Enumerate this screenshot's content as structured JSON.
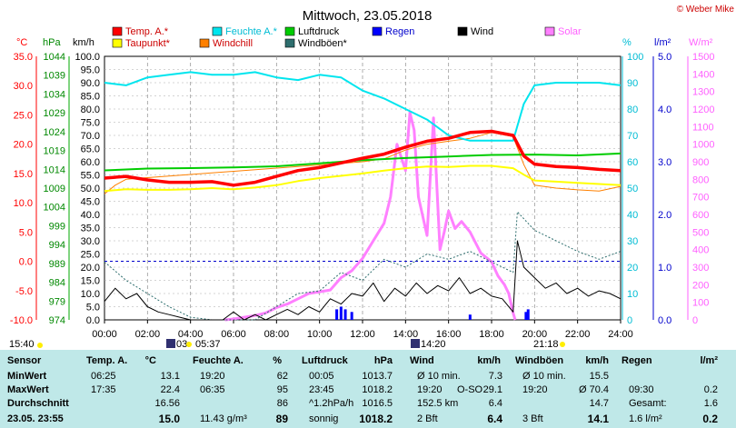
{
  "header": {
    "title": "Mittwoch, 23.05.2018",
    "copyright": "© Weber Mike"
  },
  "legend": [
    {
      "label": "Temp. A.*",
      "color": "#ff0000"
    },
    {
      "label": "Feuchte A.*",
      "color": "#00e5ee"
    },
    {
      "label": "Luftdruck",
      "color": "#00cc00"
    },
    {
      "label": "Regen",
      "color": "#0000ff"
    },
    {
      "label": "Wind",
      "color": "#000000"
    },
    {
      "label": "Solar",
      "color": "#ff80ff"
    },
    {
      "label": "Taupunkt*",
      "color": "#ffff00"
    },
    {
      "label": "Windchill",
      "color": "#ff8000"
    },
    {
      "label": "Windböen*",
      "color": "#2e6e6e"
    }
  ],
  "axes": {
    "temp_unit": "°C",
    "pressure_unit": "hPa",
    "wind_unit": "km/h",
    "humidity_unit": "%",
    "rain_unit": "l/m²",
    "solar_unit": "W/m²",
    "temp_ticks": [
      "35.0",
      "30.0",
      "25.0",
      "20.0",
      "15.0",
      "10.0",
      "5.0",
      "0.0",
      "-5.0",
      "-10.0"
    ],
    "pressure_ticks": [
      "1044",
      "1039",
      "1034",
      "1029",
      "1024",
      "1019",
      "1014",
      "1009",
      "1004",
      "999",
      "994",
      "989",
      "984",
      "979",
      "974"
    ],
    "wind_ticks": [
      "100.0",
      "95.0",
      "90.0",
      "85.0",
      "80.0",
      "75.0",
      "70.0",
      "65.0",
      "60.0",
      "55.0",
      "50.0",
      "45.0",
      "40.0",
      "35.0",
      "30.0",
      "25.0",
      "20.0",
      "15.0",
      "10.0",
      "5.0",
      "0.0"
    ],
    "humidity_ticks": [
      "100",
      "90",
      "80",
      "70",
      "60",
      "50",
      "40",
      "30",
      "20",
      "10",
      "0"
    ],
    "rain_ticks": [
      "5.0",
      "4.0",
      "3.0",
      "2.0",
      "1.0",
      "0.0"
    ],
    "solar_ticks": [
      "1500",
      "1400",
      "1300",
      "1200",
      "1100",
      "1000",
      "900",
      "800",
      "700",
      "600",
      "500",
      "400",
      "300",
      "200",
      "100",
      "0"
    ],
    "time_ticks": [
      "00:00",
      "02:00",
      "04:00",
      "06:00",
      "08:00",
      "10:00",
      "12:00",
      "14:00",
      "16:00",
      "18:00",
      "20:00",
      "22:00",
      "24:00"
    ]
  },
  "events": {
    "sunshine_hours": "15:40",
    "sunrise": "05:37",
    "noon": "14:20",
    "sunset": "21:18",
    "moon_marker": "03:"
  },
  "chart_data": {
    "type": "line",
    "x_unit": "hour",
    "xlim": [
      0,
      24
    ],
    "temp_ylim": [
      -10,
      35
    ],
    "series": [
      {
        "name": "Temp. A.*",
        "axis": "°C",
        "color": "#ff0000",
        "x": [
          0,
          1,
          2,
          3,
          4,
          5,
          6,
          7,
          8,
          9,
          10,
          11,
          12,
          13,
          14,
          15,
          16,
          17,
          18,
          19,
          19.5,
          20,
          21,
          22,
          23,
          24
        ],
        "y": [
          14.2,
          14.5,
          13.9,
          13.5,
          13.5,
          13.6,
          13.0,
          13.5,
          14.5,
          15.5,
          16.0,
          16.8,
          17.6,
          18.3,
          19.5,
          20.5,
          21.0,
          22.0,
          22.2,
          21.5,
          18.0,
          16.6,
          16.2,
          16.0,
          15.7,
          15.5
        ]
      },
      {
        "name": "Taupunkt*",
        "axis": "°C",
        "color": "#ffff00",
        "x": [
          0,
          1,
          2,
          3,
          4,
          5,
          6,
          7,
          8,
          9,
          10,
          11,
          12,
          13,
          14,
          15,
          16,
          17,
          18,
          19,
          19.5,
          20,
          21,
          22,
          23,
          24
        ],
        "y": [
          12.0,
          12.3,
          12.2,
          12.2,
          12.3,
          12.5,
          12.3,
          12.6,
          13.0,
          13.7,
          14.2,
          14.6,
          15.0,
          15.5,
          15.9,
          16.2,
          16.1,
          16.3,
          16.3,
          15.9,
          14.8,
          13.8,
          13.6,
          13.4,
          13.2,
          13.0
        ]
      },
      {
        "name": "Windchill",
        "axis": "°C",
        "color": "#ff8000",
        "x": [
          0,
          0.5,
          1,
          12,
          13,
          14,
          15,
          16,
          17,
          18,
          19,
          19.5,
          20,
          21,
          22,
          23,
          24
        ],
        "y": [
          11.5,
          13.0,
          14.0,
          17.0,
          17.5,
          19.0,
          20.0,
          20.5,
          21.0,
          22.0,
          21.3,
          16.5,
          13.0,
          12.5,
          12.2,
          12.0,
          12.8
        ]
      },
      {
        "name": "Feuchte A.*",
        "axis": "%",
        "color": "#00e5ee",
        "x": [
          0,
          1,
          2,
          3,
          4,
          5,
          6,
          7,
          8,
          9,
          10,
          11,
          12,
          13,
          14,
          15,
          16,
          17,
          18,
          19,
          19.5,
          20,
          21,
          22,
          23,
          24
        ],
        "y": [
          90,
          89,
          92,
          93,
          94,
          93,
          93,
          94,
          92,
          91,
          93,
          92,
          87,
          84,
          80,
          76,
          70,
          68,
          68,
          68,
          82,
          89,
          90,
          90,
          90,
          89
        ]
      },
      {
        "name": "Luftdruck",
        "axis": "hPa",
        "color": "#00cc00",
        "x": [
          0,
          2,
          4,
          6,
          8,
          10,
          12,
          14,
          16,
          18,
          20,
          22,
          24
        ],
        "y": [
          1013.7,
          1014.2,
          1014.3,
          1014.5,
          1014.8,
          1015.6,
          1016.4,
          1017.0,
          1017.4,
          1017.8,
          1017.9,
          1017.7,
          1018.2
        ]
      },
      {
        "name": "Wind",
        "axis": "km/h",
        "color": "#000000",
        "x": [
          0,
          0.5,
          1,
          1.5,
          2,
          2.5,
          3,
          3.5,
          4,
          4.5,
          5,
          5.5,
          6,
          6.5,
          7,
          7.5,
          8,
          8.5,
          9,
          9.5,
          10,
          10.5,
          11,
          11.5,
          12,
          12.5,
          13,
          13.5,
          14,
          14.5,
          15,
          15.5,
          16,
          16.5,
          17,
          17.5,
          18,
          18.5,
          19,
          19.2,
          19.5,
          20,
          20.5,
          21,
          21.5,
          22,
          22.5,
          23,
          23.5,
          24
        ],
        "y": [
          7,
          12,
          8,
          10,
          5,
          3,
          2,
          1,
          0,
          0,
          0,
          0,
          3,
          0,
          2,
          0,
          2,
          4,
          2,
          5,
          3,
          8,
          6,
          10,
          9,
          14,
          7,
          12,
          9,
          14,
          10,
          13,
          11,
          16,
          10,
          12,
          9,
          8,
          3,
          30,
          20,
          16,
          12,
          14,
          10,
          12,
          9,
          11,
          10,
          8
        ]
      },
      {
        "name": "Windböen*",
        "axis": "km/h",
        "color": "#2e6e6e",
        "x": [
          0,
          1,
          2,
          3,
          4,
          5,
          6,
          7,
          8,
          9,
          10,
          11,
          12,
          13,
          14,
          15,
          16,
          17,
          18,
          19,
          19.2,
          20,
          21,
          22,
          23,
          24
        ],
        "y": [
          22,
          15,
          10,
          5,
          1,
          0,
          0,
          0,
          5,
          10,
          11,
          18,
          15,
          23,
          20,
          25,
          23,
          26,
          22,
          18,
          41,
          34,
          30,
          26,
          23,
          26
        ]
      },
      {
        "name": "Solar",
        "axis": "W/m²",
        "color": "#ff80ff",
        "x": [
          5.6,
          6,
          6.5,
          7,
          7.5,
          8,
          8.5,
          9,
          9.5,
          10,
          10.5,
          11,
          11.5,
          12,
          12.5,
          13,
          13.3,
          13.6,
          14,
          14.2,
          14.4,
          14.6,
          15,
          15.3,
          15.6,
          15.8,
          16,
          16.3,
          16.6,
          17,
          17.5,
          18,
          18.3,
          18.6,
          18.8,
          19.0,
          19.1
        ],
        "y": [
          0,
          5,
          15,
          25,
          40,
          70,
          90,
          120,
          150,
          160,
          170,
          240,
          280,
          350,
          450,
          550,
          700,
          1000,
          850,
          1180,
          1080,
          700,
          480,
          1150,
          400,
          500,
          620,
          520,
          560,
          500,
          380,
          330,
          250,
          200,
          150,
          40,
          0
        ]
      },
      {
        "name": "Regen",
        "axis": "l/m²",
        "color": "#0000ff",
        "x": [
          10.8,
          11.0,
          11.2,
          11.5,
          17.0,
          19.6,
          19.7
        ],
        "y": [
          0.2,
          0.25,
          0.2,
          0.15,
          0.1,
          0.15,
          0.2
        ]
      }
    ]
  },
  "stats": {
    "sensor": {
      "header": "Sensor",
      "rows": [
        "MinWert",
        "MaxWert",
        "Durchschnitt",
        "23.05. 23:55"
      ]
    },
    "temp": {
      "header": "Temp. A.",
      "unit": "°C",
      "rows": [
        [
          "06:25",
          "13.1"
        ],
        [
          "17:35",
          "22.4"
        ],
        [
          "",
          "16.56"
        ],
        [
          "",
          "15.0"
        ]
      ]
    },
    "humidity": {
      "header": "Feuchte A.",
      "unit": "%",
      "rows": [
        [
          "19:20",
          "62"
        ],
        [
          "06:35",
          "95"
        ],
        [
          "",
          "86"
        ],
        [
          "11.43 g/m³",
          "89"
        ]
      ]
    },
    "pressure": {
      "header": "Luftdruck",
      "unit": "hPa",
      "rows": [
        [
          "00:05",
          "1013.7"
        ],
        [
          "23:45",
          "1018.2"
        ],
        [
          "^1.2hPa/h",
          "1016.5"
        ],
        [
          "sonnig",
          "1018.2"
        ]
      ]
    },
    "wind": {
      "header": "Wind",
      "unit": "km/h",
      "rows": [
        [
          "Ø 10 min.",
          "",
          "7.3"
        ],
        [
          "19:20",
          "O-SO",
          "29.1"
        ],
        [
          "152.5 km",
          "",
          "6.4"
        ],
        [
          "2 Bft",
          "",
          "6.4"
        ]
      ]
    },
    "gusts": {
      "header": "Windböen",
      "unit": "km/h",
      "rows": [
        [
          "Ø 10 min.",
          "15.5"
        ],
        [
          "19:20",
          "Ø 70.4"
        ],
        [
          "",
          "14.7"
        ],
        [
          "3 Bft",
          "14.1"
        ]
      ]
    },
    "rain": {
      "header": "Regen",
      "unit": "l/m²",
      "rows": [
        [
          "",
          ""
        ],
        [
          "09:30",
          "0.2"
        ],
        [
          "Gesamt:",
          "1.6"
        ],
        [
          "1.6 l/m²",
          "0.2"
        ]
      ]
    }
  }
}
